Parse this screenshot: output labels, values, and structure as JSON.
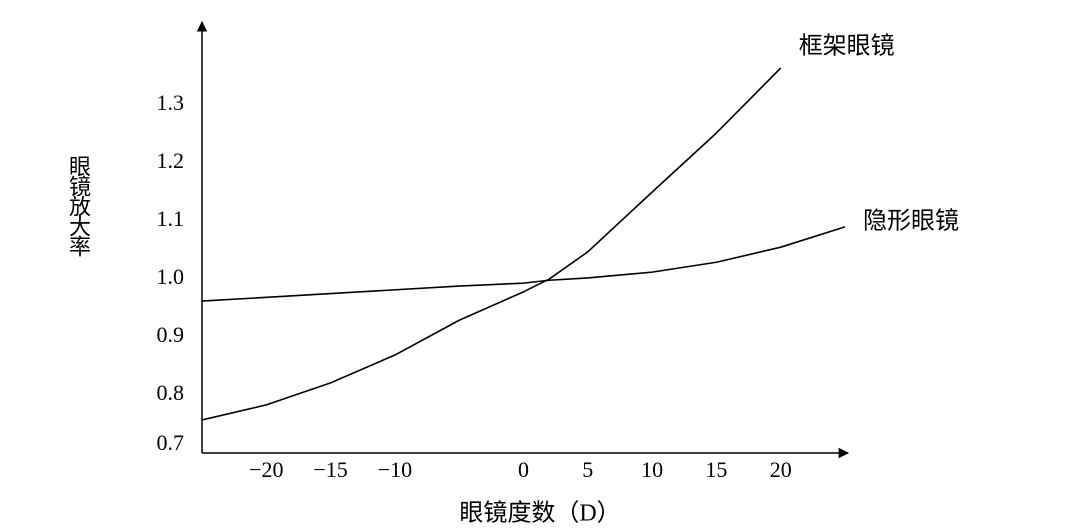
{
  "chart_data": {
    "type": "line",
    "xlabel": "眼镜度数（D）",
    "ylabel": "眼镜放大率",
    "xlim": [
      -25,
      25
    ],
    "ylim": [
      0.7,
      1.44
    ],
    "xticks": [
      {
        "value": -20,
        "label": "−20"
      },
      {
        "value": -15,
        "label": "−15"
      },
      {
        "value": -10,
        "label": "−10"
      },
      0,
      5,
      10,
      15,
      20
    ],
    "yticks": [
      0.7,
      0.8,
      0.9,
      {
        "value": 1,
        "label": "1.0"
      },
      1.1,
      1.2,
      1.3
    ],
    "series": [
      {
        "name": "框架眼镜",
        "color": "#000000",
        "x": [
          -25,
          -20,
          -15,
          -10,
          -5,
          0,
          2,
          5,
          10,
          15,
          20
        ],
        "values": [
          0.757,
          0.783,
          0.821,
          0.869,
          0.929,
          0.978,
          1.0,
          1.047,
          1.15,
          1.252,
          1.364
        ]
      },
      {
        "name": "隐形眼镜",
        "color": "#000000",
        "x": [
          -25,
          -15,
          -5,
          0,
          2,
          5,
          10,
          15,
          20,
          25
        ],
        "values": [
          0.962,
          0.975,
          0.988,
          0.993,
          0.998,
          1.002,
          1.012,
          1.029,
          1.055,
          1.09
        ]
      }
    ]
  }
}
